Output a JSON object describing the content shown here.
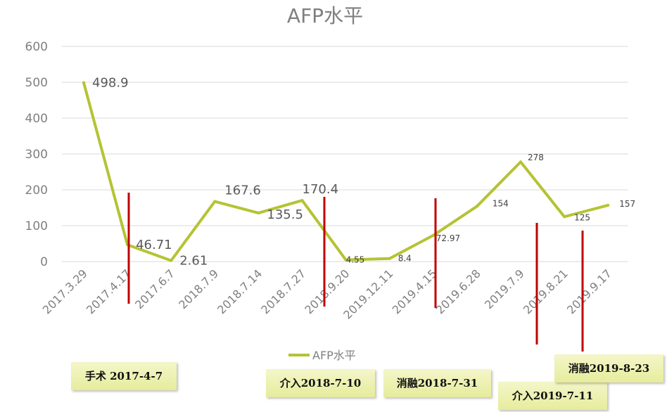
{
  "chart_data": {
    "type": "line",
    "title": "AFP水平",
    "categories": [
      "2017.3.29",
      "2017.4.17",
      "2017.6.7",
      "2018.7.9",
      "2018.7.14",
      "2018.7.27",
      "2018.9.20",
      "2019.12.11",
      "2019.4.15",
      "2019.6.28",
      "2019.7.9",
      "2019.8.21",
      "2019.9.17"
    ],
    "series": [
      {
        "name": "AFP水平",
        "values": [
          498.9,
          46.71,
          2.61,
          167.6,
          135.5,
          170.4,
          4.55,
          8.4,
          72.97,
          154,
          278,
          125,
          157
        ],
        "labels": [
          "498.9",
          "46.71",
          "2.61",
          "167.6",
          "135.5",
          "170.4",
          "4.55",
          "8.4",
          "72.97",
          "154",
          "278",
          "125",
          "157"
        ],
        "color": "#b5c334"
      }
    ],
    "yticks": [
      "0",
      "100",
      "200",
      "300",
      "400",
      "500",
      "600"
    ],
    "ylim": [
      0,
      600
    ],
    "grid": true,
    "legend": "bottom",
    "annotations": [
      {
        "text": "手术  2017-4-7"
      },
      {
        "text": "介入2018-7-10"
      },
      {
        "text": "消融2018-7-31"
      },
      {
        "text": "介入2019-7-11"
      },
      {
        "text": "消融2019-8-23"
      }
    ],
    "marker_color": "#c00000"
  }
}
